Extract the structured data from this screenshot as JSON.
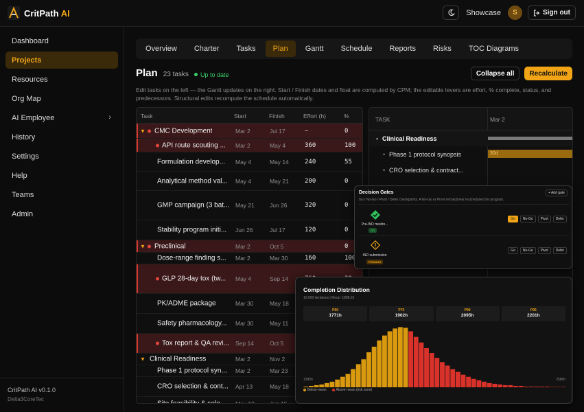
{
  "app": {
    "name": "CritPath",
    "name_accent": "AI"
  },
  "topbar": {
    "showcase": "Showcase",
    "avatar_initial": "S",
    "signout": "Sign out"
  },
  "sidebar": {
    "items": [
      {
        "label": "Dashboard"
      },
      {
        "label": "Projects",
        "active": true
      },
      {
        "label": "Resources"
      },
      {
        "label": "Org Map"
      },
      {
        "label": "AI Employee"
      },
      {
        "label": "History"
      },
      {
        "label": "Settings"
      },
      {
        "label": "Help"
      },
      {
        "label": "Teams"
      },
      {
        "label": "Admin"
      }
    ],
    "version": "CritPath AI v0.1.0",
    "org": "Delta3CoreTec"
  },
  "tabs": [
    "Overview",
    "Charter",
    "Tasks",
    "Plan",
    "Gantt",
    "Schedule",
    "Reports",
    "Risks",
    "TOC Diagrams"
  ],
  "active_tab": "Plan",
  "plan": {
    "title": "Plan",
    "count": "23 tasks",
    "status": "Up to date",
    "collapse_label": "Collapse all",
    "recalc_label": "Recalculate",
    "description": "Edit tasks on the left — the Gantt updates on the right. Start / Finish dates and float are computed by CPM; the editable levers are effort, % complete, status, and predecessors. Structural edits recompute the schedule automatically."
  },
  "table": {
    "headers": {
      "task": "Task",
      "start": "Start",
      "finish": "Finish",
      "effort": "Effort (h)",
      "pct": "%"
    },
    "rows": [
      {
        "type": "group",
        "expand": "▼",
        "dot": true,
        "name": "CMC Development",
        "start": "Mar 2",
        "finish": "Jul 17",
        "effort": "—",
        "pct": "0",
        "sel": true,
        "h": 22
      },
      {
        "type": "task",
        "dot": true,
        "name": "API route scouting ...",
        "start": "Mar 2",
        "finish": "May 4",
        "effort": "360",
        "pct": "100",
        "sel": true,
        "h": 20
      },
      {
        "type": "task",
        "name": "Formulation develop...",
        "start": "May 4",
        "finish": "May 14",
        "effort": "240",
        "pct": "55",
        "h": 28
      },
      {
        "type": "task",
        "name": "Analytical method val...",
        "start": "May 4",
        "finish": "May 21",
        "effort": "200",
        "pct": "0",
        "h": 28
      },
      {
        "type": "task",
        "name": "GMP campaign (3 bat...",
        "start": "May 21",
        "finish": "Jun 26",
        "effort": "320",
        "pct": "0",
        "h": 43
      },
      {
        "type": "task",
        "name": "Stability program initi...",
        "start": "Jun 26",
        "finish": "Jul 17",
        "effort": "120",
        "pct": "0",
        "h": 29
      },
      {
        "type": "group",
        "expand": "▼",
        "dot": true,
        "name": "Preclinical",
        "start": "Mar 2",
        "finish": "Oct 5",
        "effort": "",
        "pct": "0",
        "sel": true,
        "h": 18
      },
      {
        "type": "task",
        "name": "Dose-range finding s...",
        "start": "Mar 2",
        "finish": "Mar 30",
        "effort": "160",
        "pct": "100",
        "h": 17
      },
      {
        "type": "task",
        "dot": true,
        "name": "GLP 28-day tox (tw...",
        "start": "May 4",
        "finish": "Sep 14",
        "effort": "760",
        "pct": "30",
        "sel": true,
        "h": 43
      },
      {
        "type": "task",
        "name": "PK/ADME package",
        "start": "Mar 30",
        "finish": "May 18",
        "effort": "",
        "pct": "",
        "h": 29
      },
      {
        "type": "task",
        "name": "Safety pharmacology...",
        "start": "Mar 30",
        "finish": "May 11",
        "effort": "",
        "pct": "",
        "h": 29
      },
      {
        "type": "task",
        "dot": true,
        "name": "Tox report & QA revi...",
        "start": "Sep 14",
        "finish": "Oct 5",
        "effort": "",
        "pct": "",
        "sel": true,
        "h": 29
      },
      {
        "type": "group",
        "expand": "▼",
        "name": "Clinical Readiness",
        "start": "Mar 2",
        "finish": "Nov 2",
        "effort": "",
        "pct": "",
        "h": 17
      },
      {
        "type": "task",
        "name": "Phase 1 protocol syn...",
        "start": "Mar 2",
        "finish": "Mar 23",
        "effort": "",
        "pct": "",
        "h": 17
      },
      {
        "type": "task",
        "name": "CRO selection & cont...",
        "start": "Apr 13",
        "finish": "May 18",
        "effort": "",
        "pct": "",
        "h": 29
      },
      {
        "type": "task",
        "name": "Site feasibility & sele...",
        "start": "May 18",
        "finish": "Jun 15",
        "effort": "",
        "pct": "",
        "h": 20
      }
    ]
  },
  "gantt": {
    "task_header": "TASK",
    "date_header": "Mar 2",
    "rows": [
      {
        "label": "Clinical Readiness",
        "section": true
      },
      {
        "label": "Phase 1 protocol synopsis",
        "bar": "30d"
      },
      {
        "label": "CRO selection & contract..."
      }
    ]
  },
  "gates": {
    "title": "Decision Gates",
    "subtitle": "Go / No-Go / Pivot / Defer checkpoints. A No-Go or Pivot retroactively reschedules the program.",
    "add_label": "+ Add gate",
    "items": [
      {
        "name": "Pre-IND meetin...",
        "badge": "GO",
        "badge_color": "#2fbf5b",
        "active": "Go"
      },
      {
        "name": "IND submission",
        "badge": "PENDING",
        "badge_color": "#f0a416",
        "active": ""
      }
    ],
    "actions": [
      "Go",
      "No-Go",
      "Pivot",
      "Defer"
    ]
  },
  "distribution": {
    "title": "Completion Distribution",
    "subtitle": "10,000 iterations | Mean: 1808.2h",
    "percentiles": [
      {
        "k": "P50",
        "v": "1771h"
      },
      {
        "k": "P75",
        "v": "1902h"
      },
      {
        "k": "P90",
        "v": "2095h"
      },
      {
        "k": "P95",
        "v": "2201h"
      }
    ],
    "x_min_label": "1395h",
    "x_max_label": "2586h",
    "legend_below": "Below mean",
    "legend_above": "Above mean (risk zone)",
    "colors": {
      "below": "#d99a10",
      "above": "#d8322a"
    }
  },
  "chart_data": {
    "type": "bar",
    "title": "Completion Distribution",
    "xlabel": "",
    "ylabel": "",
    "x_range": [
      "1395h",
      "2586h"
    ],
    "series": [
      {
        "name": "Below mean",
        "values": [
          1,
          2,
          3,
          4,
          6,
          8,
          11,
          15,
          19,
          26,
          33,
          40,
          50,
          58,
          67,
          74,
          80,
          84,
          86,
          85
        ]
      },
      {
        "name": "Above mean (risk zone)",
        "values": [
          80,
          72,
          64,
          56,
          49,
          42,
          36,
          31,
          26,
          22,
          18,
          15,
          12,
          10,
          8,
          6,
          5,
          4,
          3,
          3,
          2,
          2,
          1,
          1,
          1,
          1,
          1,
          0.5,
          0.5,
          0.5
        ]
      }
    ]
  }
}
